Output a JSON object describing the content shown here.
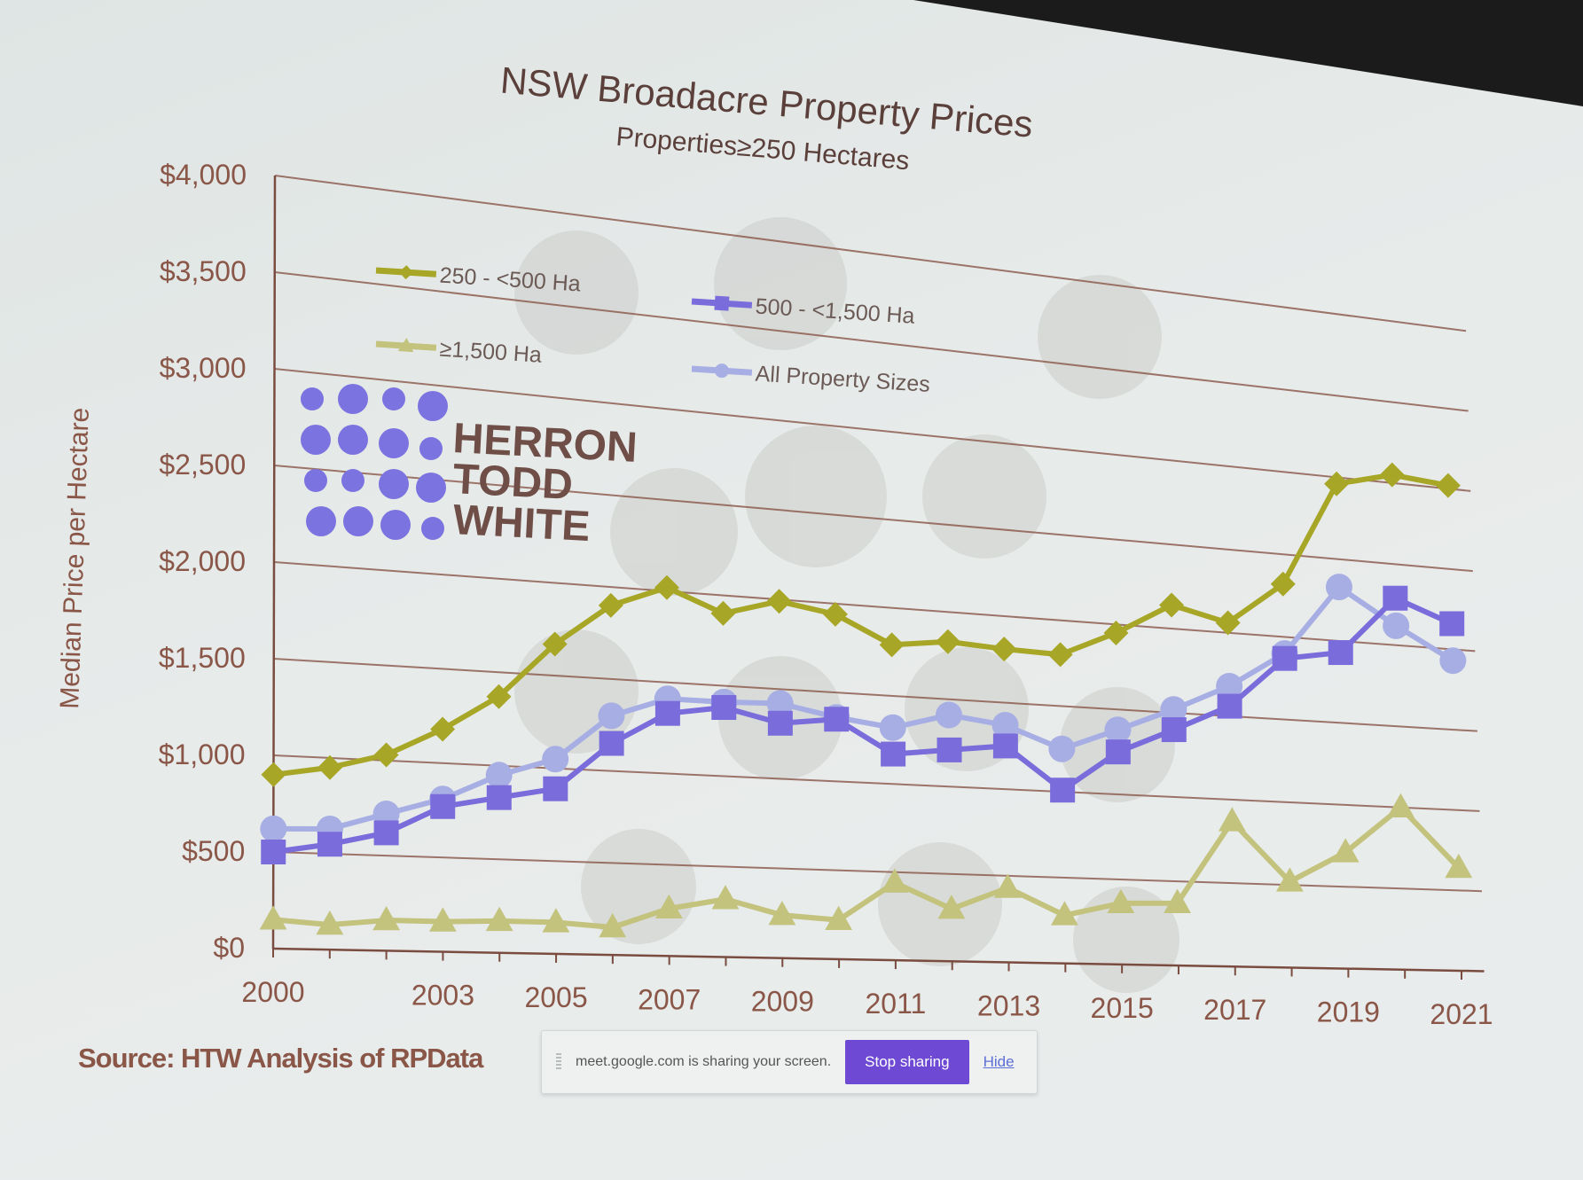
{
  "chart_data": {
    "type": "line",
    "title": "NSW Broadacre Property Prices",
    "subtitle": "Properties≥250 Hectares",
    "xlabel": "",
    "ylabel": "Median Price per Hectare",
    "ylim": [
      0,
      4000
    ],
    "xlim": [
      2000,
      2021
    ],
    "yticks": [
      "$0",
      "$500",
      "$1,000",
      "$1,500",
      "$2,000",
      "$2,500",
      "$3,000",
      "$3,500",
      "$4,000"
    ],
    "ytick_values": [
      0,
      500,
      1000,
      1500,
      2000,
      2500,
      3000,
      3500,
      4000
    ],
    "xticks": [
      "2000",
      "2003",
      "2005",
      "2007",
      "2009",
      "2011",
      "2013",
      "2015",
      "2017",
      "2019",
      "2021"
    ],
    "xtick_values": [
      2000,
      2003,
      2005,
      2007,
      2009,
      2011,
      2013,
      2015,
      2017,
      2019,
      2021
    ],
    "x": [
      2000,
      2001,
      2002,
      2003,
      2004,
      2005,
      2006,
      2007,
      2008,
      2009,
      2010,
      2011,
      2012,
      2013,
      2014,
      2015,
      2016,
      2017,
      2018,
      2019,
      2020,
      2021
    ],
    "grid": true,
    "legend_position": "top-left",
    "series": [
      {
        "name": "250 - <500 Ha",
        "color": "#a7a626",
        "marker": "diamond",
        "values": [
          900,
          950,
          1030,
          1180,
          1370,
          1670,
          1900,
          2020,
          1900,
          1990,
          1940,
          1790,
          1830,
          1810,
          1800,
          1950,
          2140,
          2060,
          2320,
          2960,
          3050,
          3020
        ]
      },
      {
        "name": "500 - <1,500 Ha",
        "color": "#7a6cdb",
        "marker": "square",
        "values": [
          500,
          550,
          620,
          770,
          830,
          890,
          1150,
          1330,
          1380,
          1310,
          1350,
          1170,
          1210,
          1250,
          1010,
          1250,
          1400,
          1560,
          1870,
          1930,
          2290,
          2160
        ]
      },
      {
        "name": "≥1,500 Ha",
        "color": "#c3c37e",
        "marker": "triangle",
        "values": [
          150,
          130,
          160,
          160,
          170,
          170,
          150,
          260,
          320,
          240,
          220,
          440,
          300,
          430,
          280,
          360,
          370,
          870,
          520,
          710,
          1000,
          640
        ]
      },
      {
        "name": "All Property Sizes",
        "color": "#a7aee3",
        "marker": "circle",
        "values": [
          620,
          630,
          720,
          810,
          950,
          1050,
          1300,
          1410,
          1410,
          1420,
          1360,
          1320,
          1410,
          1370,
          1250,
          1380,
          1520,
          1680,
          1900,
          2330,
          2120,
          1930
        ]
      }
    ]
  },
  "logo": {
    "lines": [
      "HERRON",
      "TODD",
      "WHITE"
    ]
  },
  "source": "Source: HTW Analysis of RPData",
  "share_bar": {
    "message": "meet.google.com is sharing your screen.",
    "stop_label": "Stop sharing",
    "hide_label": "Hide"
  }
}
